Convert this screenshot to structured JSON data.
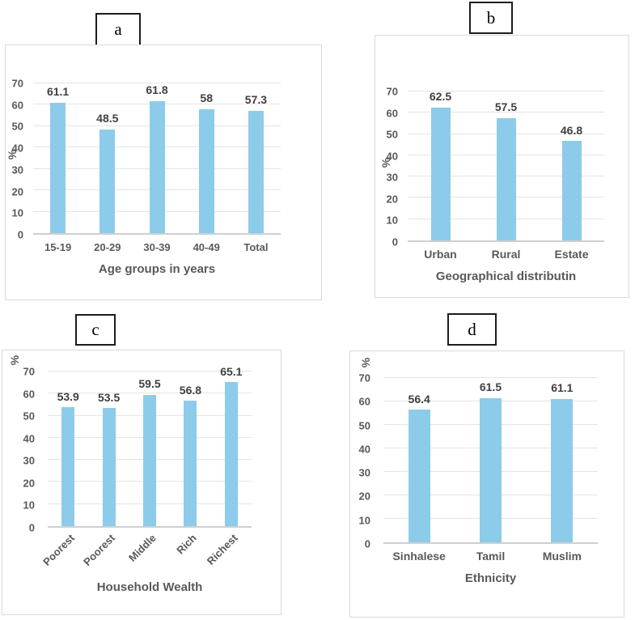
{
  "colors": {
    "bar": "#8DCBEA",
    "grid": "#e4e4e4",
    "baseline": "#cfcfcf",
    "tick_text": "#595959",
    "value_label_text": "#3f3f3f",
    "frame_border": "#d9d9d9"
  },
  "chart_data": [
    {
      "panel_label": "a",
      "type": "bar",
      "categories": [
        "15-19",
        "20-29",
        "30-39",
        "40-49",
        "Total"
      ],
      "values": [
        61.1,
        48.5,
        61.8,
        58,
        57.3
      ],
      "labels": [
        "61.1",
        "48.5",
        "61.8",
        "58",
        "57.3"
      ],
      "xlabel": "Age groups in years",
      "ylabel": "%",
      "ylim": [
        0,
        70
      ],
      "yticks": [
        0,
        10,
        20,
        30,
        40,
        50,
        60,
        70
      ],
      "grid": true,
      "legend": "none",
      "rotated_x_labels": false
    },
    {
      "panel_label": "b",
      "type": "bar",
      "categories": [
        "Urban",
        "Rural",
        "Estate"
      ],
      "values": [
        62.5,
        57.5,
        46.8
      ],
      "labels": [
        "62.5",
        "57.5",
        "46.8"
      ],
      "xlabel": "Geographical distributin",
      "ylabel": "%",
      "ylim": [
        0,
        70
      ],
      "yticks": [
        0,
        10,
        20,
        30,
        40,
        50,
        60,
        70
      ],
      "grid": true,
      "legend": "none",
      "rotated_x_labels": false
    },
    {
      "panel_label": "c",
      "type": "bar",
      "categories": [
        "Poorest",
        "Poorest",
        "Middle",
        "Rich",
        "Richest"
      ],
      "values": [
        53.9,
        53.5,
        59.5,
        56.8,
        65.1
      ],
      "labels": [
        "53.9",
        "53.5",
        "59.5",
        "56.8",
        "65.1"
      ],
      "xlabel": "Household Wealth",
      "ylabel": "%",
      "ylim": [
        0,
        70
      ],
      "yticks": [
        0,
        10,
        20,
        30,
        40,
        50,
        60,
        70
      ],
      "grid": true,
      "legend": "none",
      "rotated_x_labels": true
    },
    {
      "panel_label": "d",
      "type": "bar",
      "categories": [
        "Sinhalese",
        "Tamil",
        "Muslim"
      ],
      "values": [
        56.4,
        61.5,
        61.1
      ],
      "labels": [
        "56.4",
        "61.5",
        "61.1"
      ],
      "xlabel": "Ethnicity",
      "ylabel": "%",
      "ylim": [
        0,
        70
      ],
      "yticks": [
        0,
        10,
        20,
        30,
        40,
        50,
        60,
        70
      ],
      "grid": true,
      "legend": "none",
      "rotated_x_labels": false
    }
  ]
}
